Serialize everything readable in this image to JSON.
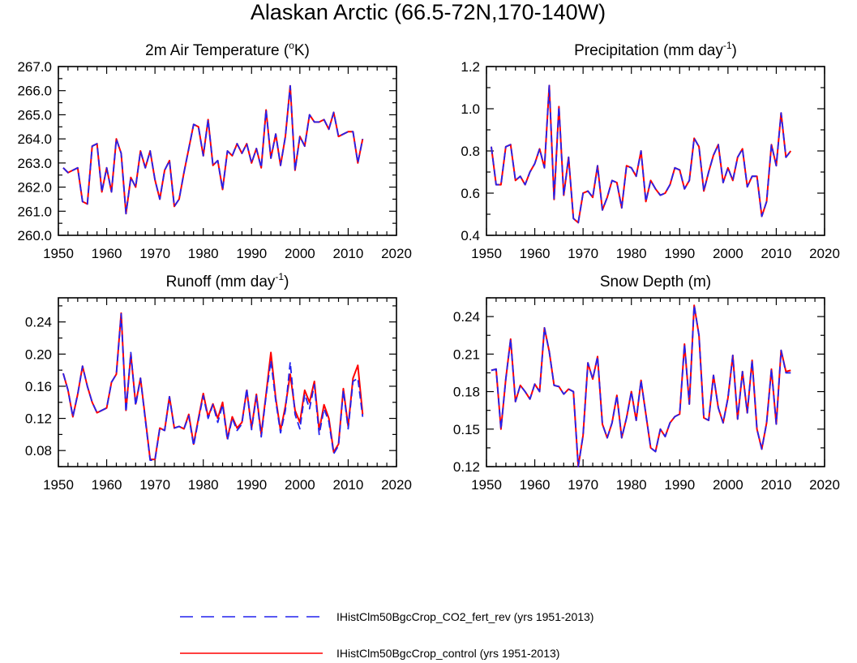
{
  "page_title": "Alaskan Arctic (66.5-72N,170-140W)",
  "colors": {
    "control": "#ff0000",
    "co2": "#2222ee",
    "axis": "#000000"
  },
  "legend": {
    "items": [
      {
        "label": "IHistClm50BgcCrop_CO2_fert_rev (yrs 1951-2013)",
        "style": "dashed",
        "color": "#2222ee"
      },
      {
        "label": "IHistClm50BgcCrop_control (yrs 1951-2013)",
        "style": "solid",
        "color": "#ff0000"
      }
    ]
  },
  "chart_data": [
    {
      "type": "line",
      "title": "2m Air Temperature (",
      "title_sup": "o",
      "title_post": "K)",
      "xlim": [
        1950,
        2020
      ],
      "xticks": [
        1950,
        1960,
        1970,
        1980,
        1990,
        2000,
        2010,
        2020
      ],
      "ylim": [
        260.0,
        267.0
      ],
      "yticks": [
        "260.0",
        "261.0",
        "262.0",
        "263.0",
        "264.0",
        "265.0",
        "266.0",
        "267.0"
      ],
      "x_start": 1951,
      "series": [
        {
          "name": "IHistClm50BgcCrop_control (yrs 1951-2013)",
          "style": "solid",
          "values": [
            262.8,
            262.6,
            262.7,
            262.8,
            261.4,
            261.3,
            263.7,
            263.8,
            261.8,
            262.8,
            261.8,
            264.0,
            263.4,
            260.9,
            262.4,
            262.0,
            263.5,
            262.8,
            263.5,
            262.3,
            261.5,
            262.7,
            263.1,
            261.2,
            261.5,
            262.6,
            263.6,
            264.6,
            264.5,
            263.3,
            264.8,
            262.9,
            263.1,
            261.9,
            263.5,
            263.3,
            263.8,
            263.4,
            263.8,
            263.0,
            263.6,
            262.8,
            265.2,
            263.2,
            264.2,
            262.9,
            264.1,
            266.2,
            262.7,
            264.1,
            263.7,
            265.0,
            264.7,
            264.7,
            264.8,
            264.4,
            265.1,
            264.1,
            264.2,
            264.3,
            264.3,
            263.0,
            264.0
          ]
        },
        {
          "name": "IHistClm50BgcCrop_CO2_fert_rev (yrs 1951-2013)",
          "style": "dashed",
          "values": [
            262.8,
            262.6,
            262.7,
            262.8,
            261.4,
            261.3,
            263.7,
            263.8,
            261.8,
            262.8,
            261.8,
            264.0,
            263.4,
            260.9,
            262.4,
            262.0,
            263.5,
            262.8,
            263.5,
            262.3,
            261.5,
            262.7,
            263.1,
            261.2,
            261.5,
            262.6,
            263.6,
            264.6,
            264.5,
            263.3,
            264.8,
            262.9,
            263.1,
            261.9,
            263.5,
            263.3,
            263.8,
            263.4,
            263.8,
            263.0,
            263.6,
            262.8,
            265.2,
            263.2,
            264.2,
            262.9,
            264.1,
            266.2,
            262.7,
            264.1,
            263.7,
            265.0,
            264.7,
            264.7,
            264.8,
            264.4,
            265.1,
            264.1,
            264.2,
            264.3,
            264.3,
            263.0,
            264.0
          ]
        }
      ]
    },
    {
      "type": "line",
      "title": "Precipitation (mm day",
      "title_sup": "-1",
      "title_post": ")",
      "xlim": [
        1950,
        2020
      ],
      "xticks": [
        1950,
        1960,
        1970,
        1980,
        1990,
        2000,
        2010,
        2020
      ],
      "ylim": [
        0.4,
        1.2
      ],
      "yticks": [
        "0.4",
        "0.6",
        "0.8",
        "1.0",
        "1.2"
      ],
      "x_start": 1951,
      "series": [
        {
          "name": "IHistClm50BgcCrop_control (yrs 1951-2013)",
          "style": "solid",
          "values": [
            0.82,
            0.64,
            0.64,
            0.82,
            0.83,
            0.66,
            0.68,
            0.64,
            0.7,
            0.74,
            0.81,
            0.72,
            1.11,
            0.57,
            1.01,
            0.59,
            0.77,
            0.48,
            0.46,
            0.6,
            0.61,
            0.58,
            0.73,
            0.52,
            0.58,
            0.66,
            0.65,
            0.53,
            0.73,
            0.72,
            0.68,
            0.8,
            0.56,
            0.66,
            0.62,
            0.59,
            0.6,
            0.64,
            0.72,
            0.71,
            0.62,
            0.66,
            0.86,
            0.82,
            0.61,
            0.7,
            0.78,
            0.83,
            0.65,
            0.72,
            0.66,
            0.77,
            0.81,
            0.63,
            0.68,
            0.68,
            0.49,
            0.56,
            0.83,
            0.73,
            0.98,
            0.77,
            0.8
          ]
        },
        {
          "name": "IHistClm50BgcCrop_CO2_fert_rev (yrs 1951-2013)",
          "style": "dashed",
          "values": [
            0.82,
            0.64,
            0.64,
            0.82,
            0.83,
            0.66,
            0.68,
            0.64,
            0.7,
            0.74,
            0.81,
            0.72,
            1.11,
            0.57,
            1.01,
            0.59,
            0.77,
            0.48,
            0.46,
            0.6,
            0.61,
            0.58,
            0.73,
            0.52,
            0.58,
            0.66,
            0.65,
            0.53,
            0.73,
            0.72,
            0.68,
            0.8,
            0.56,
            0.66,
            0.62,
            0.59,
            0.6,
            0.64,
            0.72,
            0.71,
            0.62,
            0.66,
            0.86,
            0.82,
            0.61,
            0.7,
            0.78,
            0.83,
            0.65,
            0.72,
            0.66,
            0.77,
            0.81,
            0.63,
            0.68,
            0.68,
            0.49,
            0.56,
            0.83,
            0.73,
            0.98,
            0.77,
            0.8
          ]
        }
      ]
    },
    {
      "type": "line",
      "title": "Runoff (mm day",
      "title_sup": "-1",
      "title_post": ")",
      "xlim": [
        1950,
        2020
      ],
      "xticks": [
        1950,
        1960,
        1970,
        1980,
        1990,
        2000,
        2010,
        2020
      ],
      "ylim": [
        0.06,
        0.27
      ],
      "yticks": [
        "0.08",
        "0.12",
        "0.16",
        "0.20",
        "0.24"
      ],
      "ytick_values": [
        0.08,
        0.12,
        0.16,
        0.2,
        0.24
      ],
      "x_start": 1951,
      "series": [
        {
          "name": "IHistClm50BgcCrop_control (yrs 1951-2013)",
          "style": "solid",
          "values": [
            0.176,
            0.155,
            0.122,
            0.15,
            0.185,
            0.16,
            0.14,
            0.127,
            0.13,
            0.133,
            0.165,
            0.175,
            0.251,
            0.13,
            0.2,
            0.138,
            0.17,
            0.12,
            0.069,
            0.069,
            0.108,
            0.105,
            0.147,
            0.108,
            0.11,
            0.107,
            0.125,
            0.088,
            0.12,
            0.151,
            0.122,
            0.138,
            0.12,
            0.14,
            0.095,
            0.122,
            0.108,
            0.115,
            0.155,
            0.108,
            0.15,
            0.1,
            0.15,
            0.202,
            0.145,
            0.105,
            0.135,
            0.175,
            0.13,
            0.115,
            0.155,
            0.14,
            0.166,
            0.105,
            0.137,
            0.12,
            0.078,
            0.088,
            0.157,
            0.11,
            0.17,
            0.186,
            0.125
          ]
        },
        {
          "name": "IHistClm50BgcCrop_CO2_fert_rev (yrs 1951-2013)",
          "style": "dashed",
          "values": [
            0.176,
            0.155,
            0.122,
            0.15,
            0.185,
            0.16,
            0.14,
            0.127,
            0.13,
            0.133,
            0.165,
            0.175,
            0.25,
            0.128,
            0.202,
            0.136,
            0.17,
            0.118,
            0.068,
            0.068,
            0.108,
            0.105,
            0.147,
            0.108,
            0.11,
            0.107,
            0.123,
            0.086,
            0.118,
            0.148,
            0.12,
            0.137,
            0.115,
            0.137,
            0.093,
            0.12,
            0.105,
            0.113,
            0.157,
            0.106,
            0.148,
            0.097,
            0.148,
            0.192,
            0.142,
            0.102,
            0.13,
            0.19,
            0.125,
            0.107,
            0.15,
            0.132,
            0.162,
            0.1,
            0.132,
            0.116,
            0.076,
            0.086,
            0.155,
            0.107,
            0.166,
            0.17,
            0.122
          ]
        }
      ]
    },
    {
      "type": "line",
      "title": "Snow Depth (m)",
      "title_sup": "",
      "title_post": "",
      "xlim": [
        1950,
        2020
      ],
      "xticks": [
        1950,
        1960,
        1970,
        1980,
        1990,
        2000,
        2010,
        2020
      ],
      "ylim": [
        0.12,
        0.255
      ],
      "yticks": [
        "0.12",
        "0.15",
        "0.18",
        "0.21",
        "0.24"
      ],
      "ytick_values": [
        0.12,
        0.15,
        0.18,
        0.21,
        0.24
      ],
      "x_start": 1951,
      "series": [
        {
          "name": "IHistClm50BgcCrop_control (yrs 1951-2013)",
          "style": "solid",
          "values": [
            0.197,
            0.198,
            0.15,
            0.19,
            0.222,
            0.172,
            0.185,
            0.18,
            0.174,
            0.186,
            0.18,
            0.231,
            0.212,
            0.185,
            0.184,
            0.178,
            0.182,
            0.18,
            0.12,
            0.145,
            0.203,
            0.19,
            0.208,
            0.154,
            0.143,
            0.155,
            0.177,
            0.143,
            0.159,
            0.18,
            0.157,
            0.189,
            0.162,
            0.135,
            0.132,
            0.15,
            0.144,
            0.155,
            0.16,
            0.162,
            0.218,
            0.17,
            0.249,
            0.225,
            0.159,
            0.157,
            0.193,
            0.167,
            0.155,
            0.175,
            0.209,
            0.158,
            0.196,
            0.163,
            0.205,
            0.15,
            0.134,
            0.155,
            0.198,
            0.154,
            0.213,
            0.196,
            0.197
          ]
        },
        {
          "name": "IHistClm50BgcCrop_CO2_fert_rev (yrs 1951-2013)",
          "style": "dashed",
          "values": [
            0.197,
            0.198,
            0.15,
            0.19,
            0.222,
            0.172,
            0.185,
            0.18,
            0.174,
            0.186,
            0.18,
            0.231,
            0.212,
            0.185,
            0.184,
            0.178,
            0.182,
            0.18,
            0.12,
            0.145,
            0.203,
            0.19,
            0.208,
            0.154,
            0.143,
            0.155,
            0.177,
            0.143,
            0.159,
            0.18,
            0.157,
            0.189,
            0.162,
            0.135,
            0.132,
            0.15,
            0.144,
            0.155,
            0.16,
            0.162,
            0.218,
            0.17,
            0.249,
            0.225,
            0.159,
            0.157,
            0.193,
            0.167,
            0.155,
            0.175,
            0.209,
            0.158,
            0.196,
            0.163,
            0.205,
            0.15,
            0.134,
            0.155,
            0.198,
            0.154,
            0.213,
            0.195,
            0.195
          ]
        }
      ]
    }
  ]
}
